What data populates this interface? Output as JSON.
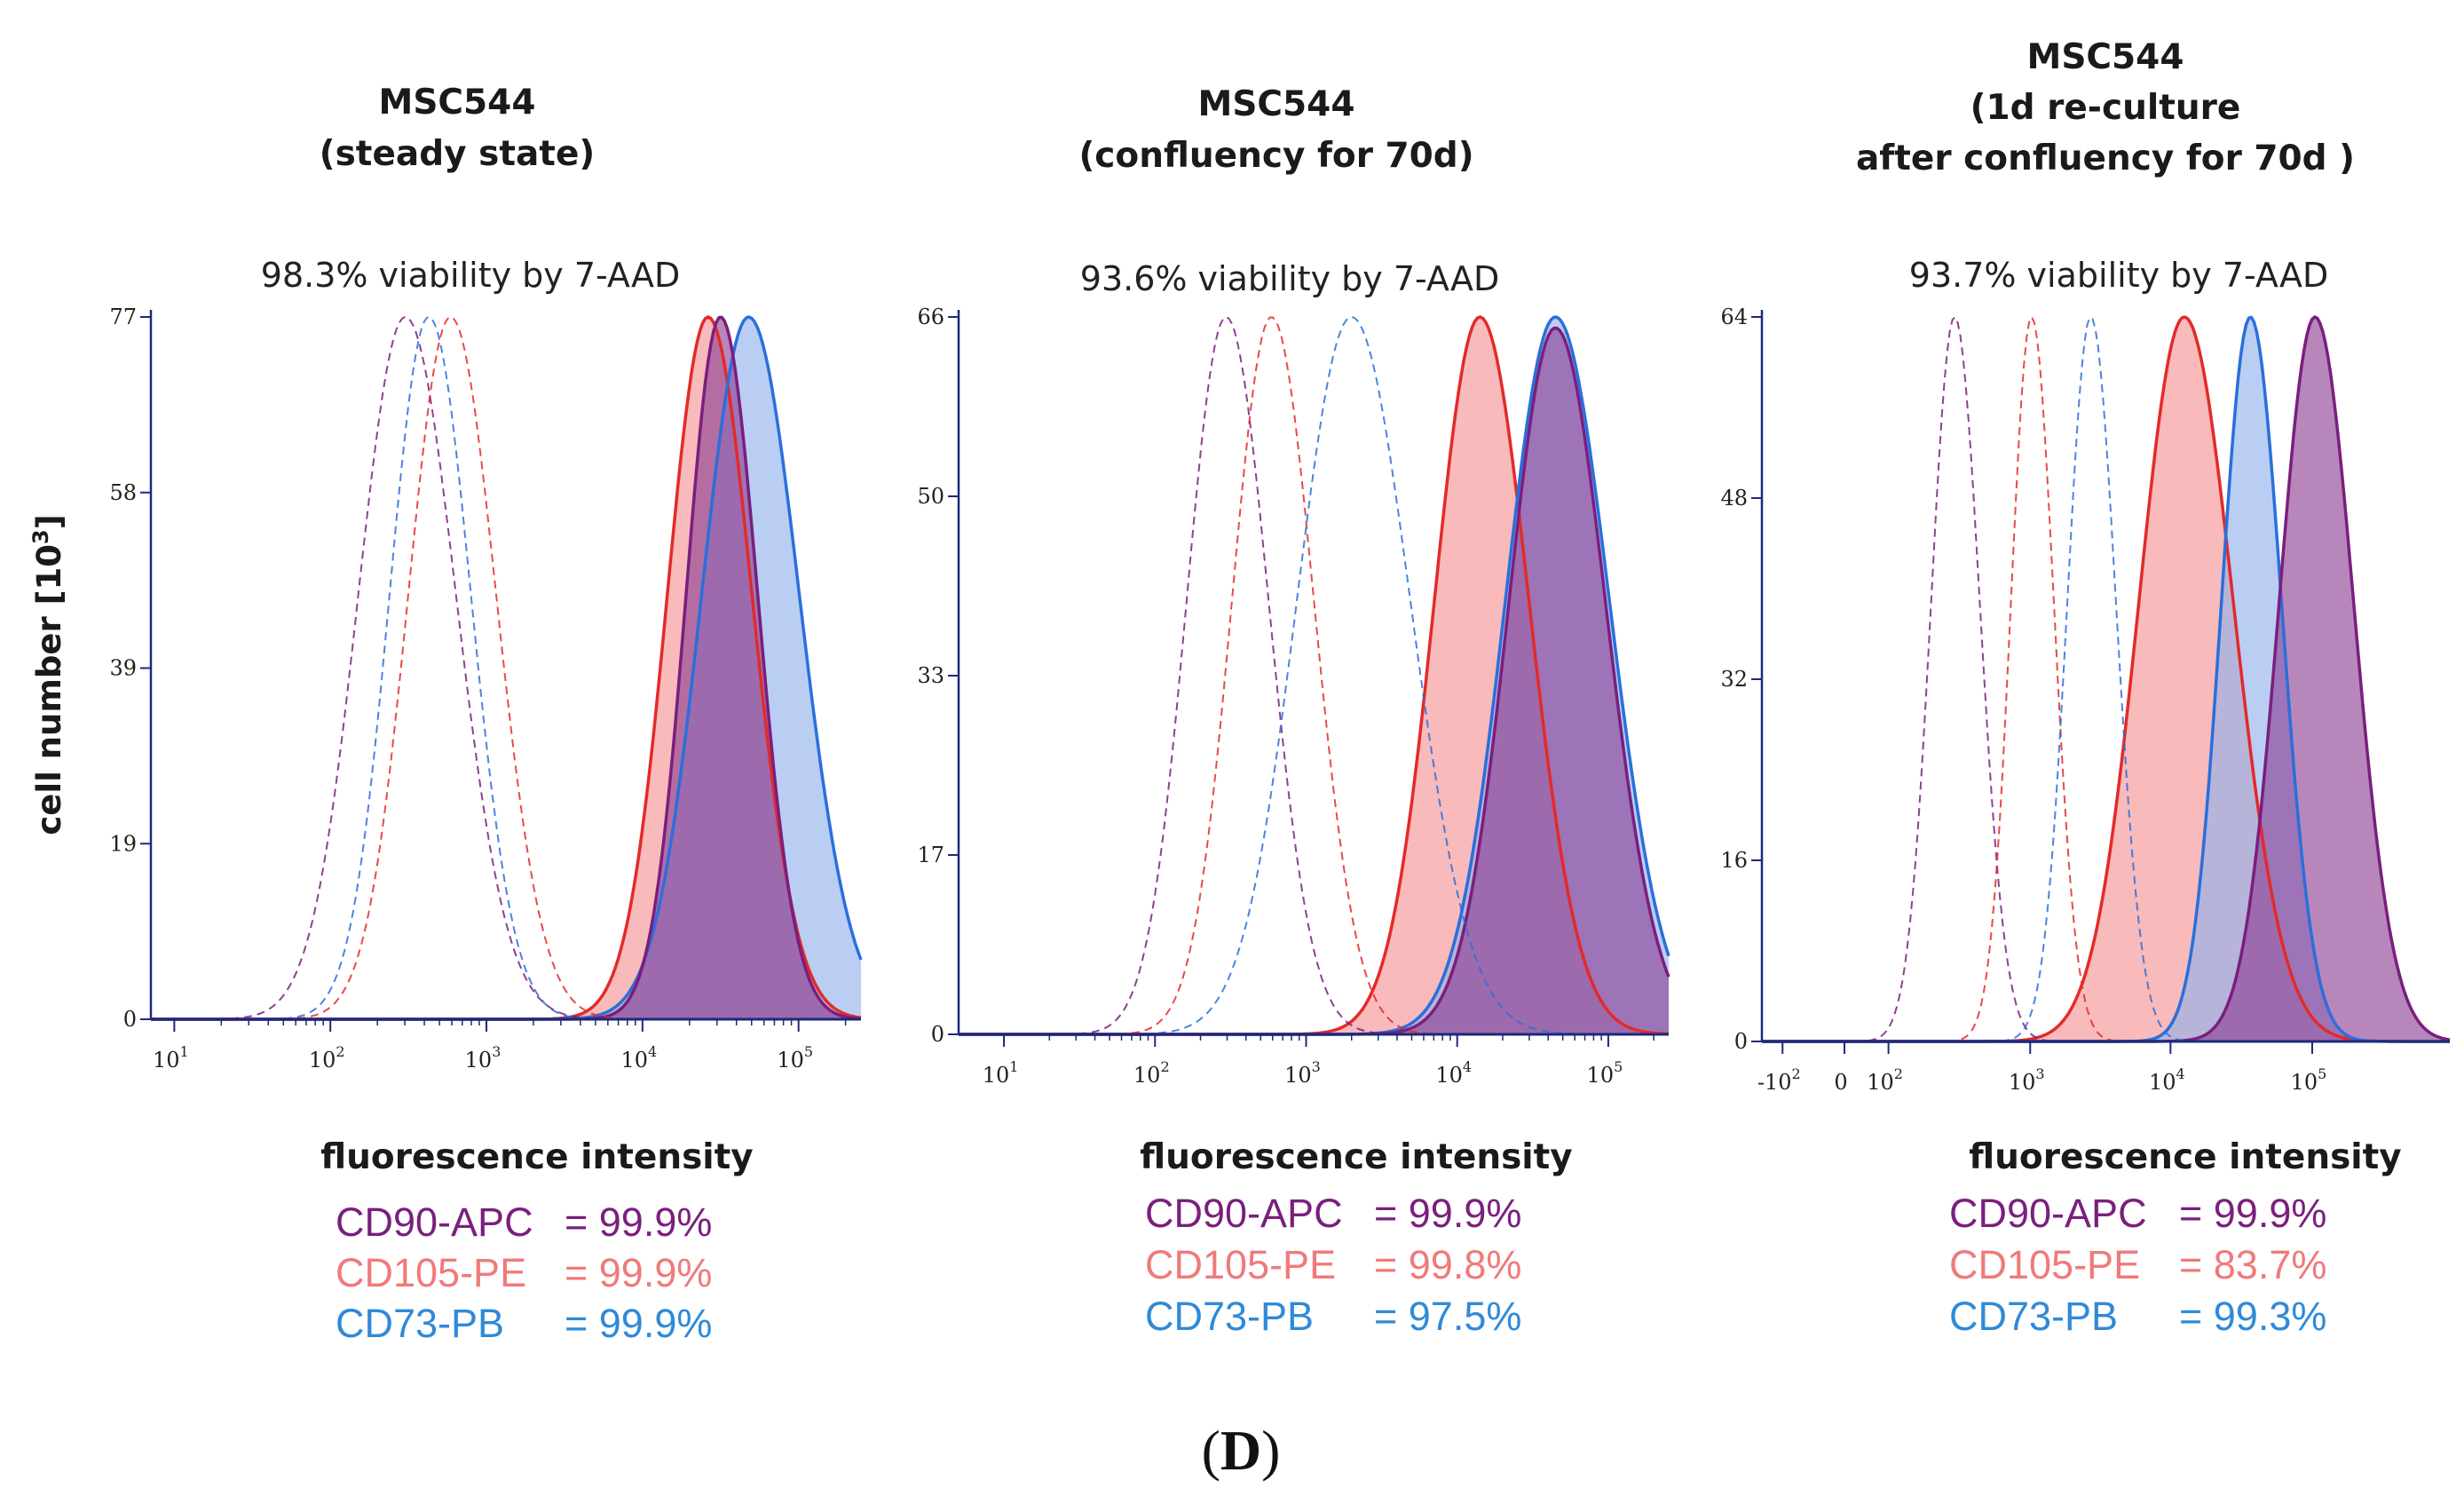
{
  "figure": {
    "panel_label_open": "(",
    "panel_label_letter": "D",
    "panel_label_close": ")",
    "y_axis_label": "cell number [10",
    "y_axis_label_sup": "3",
    "y_axis_label_end": "]",
    "x_axis_label": "fluorescence intensity"
  },
  "colors": {
    "CD90-APC": "#7a1f7e",
    "CD105-PE": "#e32a2a",
    "CD73-PB": "#2a6fdc",
    "CD90_fill": "#8b3d92",
    "CD105_fill": "#f49090",
    "CD73_fill": "#8fb0ec",
    "axis": "#1b2a7a",
    "CD90_text": "#7a1f7e",
    "CD105_text": "#f07a7a",
    "CD73_text": "#2f8ad8"
  },
  "chart_data": [
    {
      "type": "histogram",
      "title_lines": [
        "MSC544",
        "(steady state)"
      ],
      "subtitle": "98.3% viability by 7-AAD",
      "xlabel": "fluorescence intensity",
      "ylabel": "cell number [10³]",
      "x_scale": "log10",
      "xlim_log": [
        0.85,
        5.4
      ],
      "ylim": [
        0,
        77
      ],
      "y_ticks": [
        "0",
        "19",
        "39",
        "58",
        "77"
      ],
      "y_tick_values": [
        0,
        19.25,
        38.5,
        57.75,
        77
      ],
      "x_ticks": [
        {
          "base": "10",
          "exp": "1",
          "v": 1
        },
        {
          "base": "10",
          "exp": "2",
          "v": 2
        },
        {
          "base": "10",
          "exp": "3",
          "v": 3
        },
        {
          "base": "10",
          "exp": "4",
          "v": 4
        },
        {
          "base": "10",
          "exp": "5",
          "v": 5
        }
      ],
      "curves": [
        {
          "name": "CD90-APC isotype",
          "marker": "CD90-APC",
          "style": "dashed",
          "peak_log": 2.48,
          "width_log": 0.3,
          "height": 77
        },
        {
          "name": "CD73-PB isotype",
          "marker": "CD73-PB",
          "style": "dashed",
          "peak_log": 2.63,
          "width_log": 0.25,
          "height": 77
        },
        {
          "name": "CD105-PE isotype",
          "marker": "CD105-PE",
          "style": "dashed",
          "peak_log": 2.77,
          "width_log": 0.27,
          "height": 77
        },
        {
          "name": "CD105-PE",
          "marker": "CD105-PE",
          "style": "filled",
          "peak_log": 4.42,
          "width_log": 0.26,
          "height": 77
        },
        {
          "name": "CD73-PB",
          "marker": "CD73-PB",
          "style": "filled",
          "peak_log": 4.68,
          "width_log": 0.3,
          "height": 77
        },
        {
          "name": "CD90-APC",
          "marker": "CD90-APC",
          "style": "filled",
          "peak_log": 4.5,
          "width_log": 0.22,
          "height": 77
        }
      ],
      "legend": [
        {
          "label": "CD90-APC",
          "value": "= 99.9%"
        },
        {
          "label": "CD105-PE",
          "value": "= 99.9%"
        },
        {
          "label": "CD73-PB",
          "value": "= 99.9%"
        }
      ]
    },
    {
      "type": "histogram",
      "title_lines": [
        "MSC544",
        "(confluency for 70d)"
      ],
      "subtitle": "93.6% viability by 7-AAD",
      "xlabel": "fluorescence intensity",
      "ylabel": "",
      "x_scale": "log10",
      "xlim_log": [
        0.7,
        5.4
      ],
      "ylim": [
        0,
        66
      ],
      "y_ticks": [
        "0",
        "17",
        "33",
        "50",
        "66"
      ],
      "y_tick_values": [
        0,
        16.5,
        33,
        49.5,
        66
      ],
      "x_ticks": [
        {
          "base": "10",
          "exp": "1",
          "v": 1
        },
        {
          "base": "10",
          "exp": "2",
          "v": 2
        },
        {
          "base": "10",
          "exp": "3",
          "v": 3
        },
        {
          "base": "10",
          "exp": "4",
          "v": 4
        },
        {
          "base": "10",
          "exp": "5",
          "v": 5
        }
      ],
      "curves": [
        {
          "name": "CD90-APC isotype",
          "marker": "CD90-APC",
          "style": "dashed",
          "peak_log": 2.47,
          "width_log": 0.26,
          "height": 66
        },
        {
          "name": "CD105-PE isotype",
          "marker": "CD105-PE",
          "style": "dashed",
          "peak_log": 2.77,
          "width_log": 0.26,
          "height": 66
        },
        {
          "name": "CD73-PB isotype",
          "marker": "CD73-PB",
          "style": "dashed",
          "peak_log": 3.3,
          "width_log": 0.36,
          "height": 66
        },
        {
          "name": "CD105-PE",
          "marker": "CD105-PE",
          "style": "filled",
          "peak_log": 4.15,
          "width_log": 0.3,
          "height": 66
        },
        {
          "name": "CD73-PB",
          "marker": "CD73-PB",
          "style": "filled",
          "peak_log": 4.65,
          "width_log": 0.33,
          "height": 66
        },
        {
          "name": "CD90-APC",
          "marker": "CD90-APC",
          "style": "filled",
          "peak_log": 4.65,
          "width_log": 0.31,
          "height": 65
        }
      ],
      "legend": [
        {
          "label": "CD90-APC",
          "value": "= 99.9%"
        },
        {
          "label": "CD105-PE",
          "value": "= 99.8%"
        },
        {
          "label": "CD73-PB",
          "value": "= 97.5%"
        }
      ]
    },
    {
      "type": "histogram",
      "title_lines": [
        "MSC544",
        "(1d re-culture",
        "after confluency for 70d )"
      ],
      "subtitle": "93.7% viability by 7-AAD",
      "xlabel": "fluorescence intensity",
      "ylabel": "",
      "x_scale": "biexponential",
      "xlim_log": [
        0.4,
        5.4
      ],
      "ylim": [
        0,
        64
      ],
      "y_ticks": [
        "0",
        "16",
        "32",
        "48",
        "64"
      ],
      "y_tick_values": [
        0,
        16,
        32,
        48,
        64
      ],
      "x_ticks": [
        {
          "base": "-10",
          "exp": "2",
          "v": 0.55
        },
        {
          "base": "0",
          "exp": "",
          "v": 1.0
        },
        {
          "base": "10",
          "exp": "2",
          "v": 1.32
        },
        {
          "base": "10",
          "exp": "3",
          "v": 2.35
        },
        {
          "base": "10",
          "exp": "4",
          "v": 3.37
        },
        {
          "base": "10",
          "exp": "5",
          "v": 4.4
        }
      ],
      "curves": [
        {
          "name": "CD90-APC isotype",
          "marker": "CD90-APC",
          "style": "dashed",
          "peak_log": 1.8,
          "width_log": 0.17,
          "height": 64
        },
        {
          "name": "CD105-PE isotype",
          "marker": "CD105-PE",
          "style": "dashed",
          "peak_log": 2.36,
          "width_log": 0.15,
          "height": 64
        },
        {
          "name": "CD73-PB isotype",
          "marker": "CD73-PB",
          "style": "dashed",
          "peak_log": 2.79,
          "width_log": 0.17,
          "height": 64
        },
        {
          "name": "CD105-PE",
          "marker": "CD105-PE",
          "style": "filled",
          "peak_log": 3.47,
          "width_log": 0.33,
          "height": 64
        },
        {
          "name": "CD73-PB",
          "marker": "CD73-PB",
          "style": "filled",
          "peak_log": 3.95,
          "width_log": 0.21,
          "height": 64
        },
        {
          "name": "CD90-APC",
          "marker": "CD90-APC",
          "style": "filled",
          "peak_log": 4.42,
          "width_log": 0.26,
          "height": 64
        }
      ],
      "legend": [
        {
          "label": "CD90-APC",
          "value": "= 99.9%"
        },
        {
          "label": "CD105-PE",
          "value": "= 83.7%"
        },
        {
          "label": "CD73-PB",
          "value": "= 99.3%"
        }
      ]
    }
  ]
}
